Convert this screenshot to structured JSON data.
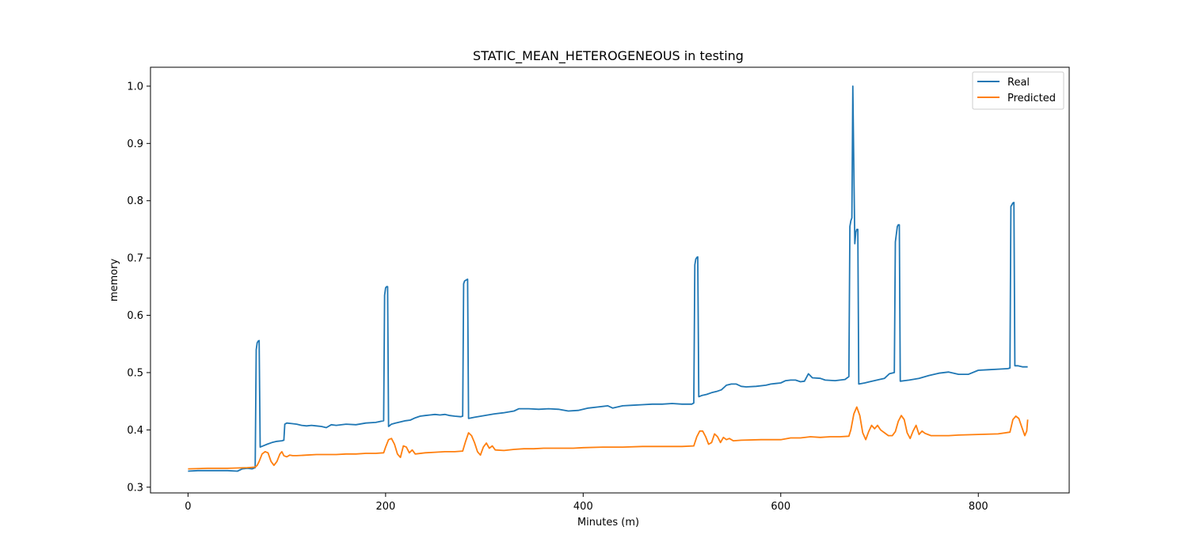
{
  "chart_data": {
    "type": "line",
    "title": "STATIC_MEAN_HETEROGENEOUS in testing",
    "xlabel": "Minutes (m)",
    "ylabel": "memory",
    "xlim": [
      -38,
      892
    ],
    "ylim": [
      0.29,
      1.033
    ],
    "x_ticks": [
      0,
      200,
      400,
      600,
      800
    ],
    "y_ticks": [
      0.3,
      0.4,
      0.5,
      0.6,
      0.7,
      0.8,
      0.9,
      1.0
    ],
    "x_tick_labels": [
      "0",
      "200",
      "400",
      "600",
      "800"
    ],
    "y_tick_labels": [
      "0.3",
      "0.4",
      "0.5",
      "0.6",
      "0.7",
      "0.8",
      "0.9",
      "1.0"
    ],
    "grid": false,
    "legend_position": "top-right",
    "series": [
      {
        "name": "Real",
        "color": "#1f77b4",
        "points": [
          [
            0,
            0.328
          ],
          [
            10,
            0.329
          ],
          [
            20,
            0.329
          ],
          [
            30,
            0.329
          ],
          [
            40,
            0.329
          ],
          [
            50,
            0.328
          ],
          [
            55,
            0.332
          ],
          [
            60,
            0.333
          ],
          [
            65,
            0.332
          ],
          [
            68,
            0.334
          ],
          [
            69,
            0.54
          ],
          [
            70,
            0.552
          ],
          [
            71,
            0.555
          ],
          [
            72,
            0.556
          ],
          [
            73,
            0.37
          ],
          [
            76,
            0.372
          ],
          [
            80,
            0.375
          ],
          [
            85,
            0.378
          ],
          [
            90,
            0.38
          ],
          [
            95,
            0.381
          ],
          [
            97,
            0.382
          ],
          [
            98,
            0.41
          ],
          [
            100,
            0.412
          ],
          [
            105,
            0.411
          ],
          [
            110,
            0.41
          ],
          [
            115,
            0.408
          ],
          [
            120,
            0.407
          ],
          [
            125,
            0.408
          ],
          [
            130,
            0.407
          ],
          [
            135,
            0.406
          ],
          [
            140,
            0.404
          ],
          [
            145,
            0.409
          ],
          [
            150,
            0.408
          ],
          [
            160,
            0.41
          ],
          [
            170,
            0.409
          ],
          [
            180,
            0.412
          ],
          [
            190,
            0.413
          ],
          [
            198,
            0.416
          ],
          [
            199,
            0.635
          ],
          [
            200,
            0.648
          ],
          [
            201,
            0.65
          ],
          [
            202,
            0.65
          ],
          [
            203,
            0.406
          ],
          [
            206,
            0.41
          ],
          [
            210,
            0.412
          ],
          [
            215,
            0.414
          ],
          [
            220,
            0.416
          ],
          [
            225,
            0.417
          ],
          [
            230,
            0.421
          ],
          [
            235,
            0.424
          ],
          [
            240,
            0.425
          ],
          [
            245,
            0.426
          ],
          [
            250,
            0.427
          ],
          [
            255,
            0.426
          ],
          [
            260,
            0.427
          ],
          [
            265,
            0.425
          ],
          [
            270,
            0.424
          ],
          [
            276,
            0.423
          ],
          [
            278,
            0.424
          ],
          [
            279,
            0.655
          ],
          [
            280,
            0.66
          ],
          [
            282,
            0.662
          ],
          [
            283,
            0.663
          ],
          [
            284,
            0.42
          ],
          [
            290,
            0.422
          ],
          [
            300,
            0.425
          ],
          [
            310,
            0.428
          ],
          [
            320,
            0.43
          ],
          [
            330,
            0.433
          ],
          [
            335,
            0.437
          ],
          [
            345,
            0.437
          ],
          [
            355,
            0.436
          ],
          [
            365,
            0.437
          ],
          [
            375,
            0.436
          ],
          [
            385,
            0.433
          ],
          [
            395,
            0.434
          ],
          [
            405,
            0.438
          ],
          [
            415,
            0.44
          ],
          [
            425,
            0.442
          ],
          [
            430,
            0.438
          ],
          [
            440,
            0.442
          ],
          [
            450,
            0.443
          ],
          [
            460,
            0.444
          ],
          [
            470,
            0.445
          ],
          [
            480,
            0.445
          ],
          [
            490,
            0.446
          ],
          [
            500,
            0.445
          ],
          [
            510,
            0.445
          ],
          [
            512,
            0.447
          ],
          [
            513,
            0.688
          ],
          [
            514,
            0.698
          ],
          [
            515,
            0.701
          ],
          [
            516,
            0.702
          ],
          [
            517,
            0.458
          ],
          [
            520,
            0.46
          ],
          [
            525,
            0.462
          ],
          [
            530,
            0.465
          ],
          [
            535,
            0.467
          ],
          [
            540,
            0.47
          ],
          [
            545,
            0.478
          ],
          [
            550,
            0.48
          ],
          [
            555,
            0.48
          ],
          [
            560,
            0.476
          ],
          [
            565,
            0.475
          ],
          [
            575,
            0.476
          ],
          [
            585,
            0.478
          ],
          [
            590,
            0.48
          ],
          [
            595,
            0.481
          ],
          [
            600,
            0.482
          ],
          [
            605,
            0.486
          ],
          [
            610,
            0.487
          ],
          [
            615,
            0.487
          ],
          [
            620,
            0.484
          ],
          [
            624,
            0.485
          ],
          [
            628,
            0.498
          ],
          [
            632,
            0.491
          ],
          [
            640,
            0.49
          ],
          [
            645,
            0.487
          ],
          [
            655,
            0.486
          ],
          [
            665,
            0.488
          ],
          [
            669,
            0.493
          ],
          [
            670,
            0.755
          ],
          [
            671,
            0.765
          ],
          [
            672,
            0.77
          ],
          [
            673,
            1.0
          ],
          [
            674,
            0.855
          ],
          [
            675,
            0.725
          ],
          [
            676,
            0.745
          ],
          [
            677,
            0.75
          ],
          [
            678,
            0.75
          ],
          [
            679,
            0.48
          ],
          [
            685,
            0.482
          ],
          [
            690,
            0.484
          ],
          [
            700,
            0.488
          ],
          [
            705,
            0.49
          ],
          [
            710,
            0.498
          ],
          [
            715,
            0.5
          ],
          [
            716,
            0.728
          ],
          [
            718,
            0.755
          ],
          [
            719,
            0.758
          ],
          [
            720,
            0.758
          ],
          [
            721,
            0.485
          ],
          [
            730,
            0.487
          ],
          [
            740,
            0.49
          ],
          [
            750,
            0.495
          ],
          [
            760,
            0.499
          ],
          [
            770,
            0.501
          ],
          [
            780,
            0.497
          ],
          [
            790,
            0.497
          ],
          [
            800,
            0.504
          ],
          [
            810,
            0.505
          ],
          [
            820,
            0.506
          ],
          [
            830,
            0.507
          ],
          [
            832,
            0.508
          ],
          [
            833,
            0.79
          ],
          [
            835,
            0.796
          ],
          [
            836,
            0.797
          ],
          [
            837,
            0.512
          ],
          [
            840,
            0.512
          ],
          [
            845,
            0.51
          ],
          [
            850,
            0.51
          ]
        ]
      },
      {
        "name": "Predicted",
        "color": "#ff7f0e",
        "points": [
          [
            0,
            0.332
          ],
          [
            20,
            0.333
          ],
          [
            40,
            0.333
          ],
          [
            60,
            0.334
          ],
          [
            68,
            0.335
          ],
          [
            70,
            0.338
          ],
          [
            72,
            0.345
          ],
          [
            75,
            0.358
          ],
          [
            78,
            0.362
          ],
          [
            81,
            0.36
          ],
          [
            84,
            0.345
          ],
          [
            87,
            0.338
          ],
          [
            90,
            0.345
          ],
          [
            93,
            0.358
          ],
          [
            95,
            0.362
          ],
          [
            97,
            0.355
          ],
          [
            100,
            0.353
          ],
          [
            103,
            0.356
          ],
          [
            106,
            0.355
          ],
          [
            110,
            0.355
          ],
          [
            120,
            0.356
          ],
          [
            130,
            0.357
          ],
          [
            140,
            0.357
          ],
          [
            150,
            0.357
          ],
          [
            160,
            0.358
          ],
          [
            170,
            0.358
          ],
          [
            180,
            0.359
          ],
          [
            190,
            0.359
          ],
          [
            198,
            0.36
          ],
          [
            200,
            0.37
          ],
          [
            203,
            0.383
          ],
          [
            206,
            0.385
          ],
          [
            209,
            0.375
          ],
          [
            212,
            0.358
          ],
          [
            215,
            0.352
          ],
          [
            218,
            0.372
          ],
          [
            221,
            0.37
          ],
          [
            224,
            0.36
          ],
          [
            227,
            0.365
          ],
          [
            230,
            0.358
          ],
          [
            240,
            0.36
          ],
          [
            250,
            0.361
          ],
          [
            260,
            0.362
          ],
          [
            270,
            0.362
          ],
          [
            278,
            0.363
          ],
          [
            281,
            0.38
          ],
          [
            284,
            0.395
          ],
          [
            287,
            0.39
          ],
          [
            290,
            0.378
          ],
          [
            293,
            0.362
          ],
          [
            296,
            0.356
          ],
          [
            299,
            0.37
          ],
          [
            302,
            0.377
          ],
          [
            305,
            0.368
          ],
          [
            308,
            0.372
          ],
          [
            311,
            0.365
          ],
          [
            320,
            0.364
          ],
          [
            330,
            0.366
          ],
          [
            340,
            0.367
          ],
          [
            350,
            0.367
          ],
          [
            360,
            0.368
          ],
          [
            370,
            0.368
          ],
          [
            380,
            0.368
          ],
          [
            390,
            0.368
          ],
          [
            400,
            0.369
          ],
          [
            420,
            0.37
          ],
          [
            440,
            0.37
          ],
          [
            460,
            0.371
          ],
          [
            480,
            0.371
          ],
          [
            500,
            0.371
          ],
          [
            512,
            0.372
          ],
          [
            515,
            0.388
          ],
          [
            518,
            0.398
          ],
          [
            521,
            0.398
          ],
          [
            524,
            0.388
          ],
          [
            527,
            0.375
          ],
          [
            530,
            0.378
          ],
          [
            533,
            0.393
          ],
          [
            536,
            0.388
          ],
          [
            539,
            0.378
          ],
          [
            542,
            0.387
          ],
          [
            545,
            0.383
          ],
          [
            548,
            0.385
          ],
          [
            552,
            0.381
          ],
          [
            560,
            0.382
          ],
          [
            580,
            0.383
          ],
          [
            600,
            0.383
          ],
          [
            610,
            0.386
          ],
          [
            620,
            0.386
          ],
          [
            630,
            0.388
          ],
          [
            640,
            0.387
          ],
          [
            650,
            0.388
          ],
          [
            660,
            0.388
          ],
          [
            669,
            0.389
          ],
          [
            671,
            0.4
          ],
          [
            674,
            0.428
          ],
          [
            677,
            0.44
          ],
          [
            680,
            0.425
          ],
          [
            683,
            0.395
          ],
          [
            686,
            0.383
          ],
          [
            689,
            0.397
          ],
          [
            692,
            0.408
          ],
          [
            695,
            0.402
          ],
          [
            698,
            0.408
          ],
          [
            701,
            0.4
          ],
          [
            705,
            0.395
          ],
          [
            709,
            0.39
          ],
          [
            713,
            0.39
          ],
          [
            716,
            0.397
          ],
          [
            719,
            0.415
          ],
          [
            722,
            0.425
          ],
          [
            725,
            0.418
          ],
          [
            728,
            0.395
          ],
          [
            731,
            0.385
          ],
          [
            734,
            0.398
          ],
          [
            737,
            0.408
          ],
          [
            740,
            0.392
          ],
          [
            743,
            0.398
          ],
          [
            746,
            0.394
          ],
          [
            749,
            0.392
          ],
          [
            752,
            0.39
          ],
          [
            760,
            0.39
          ],
          [
            770,
            0.39
          ],
          [
            780,
            0.391
          ],
          [
            800,
            0.392
          ],
          [
            820,
            0.393
          ],
          [
            832,
            0.396
          ],
          [
            835,
            0.418
          ],
          [
            838,
            0.424
          ],
          [
            841,
            0.42
          ],
          [
            844,
            0.405
          ],
          [
            847,
            0.39
          ],
          [
            849,
            0.398
          ],
          [
            850,
            0.418
          ]
        ]
      }
    ]
  }
}
